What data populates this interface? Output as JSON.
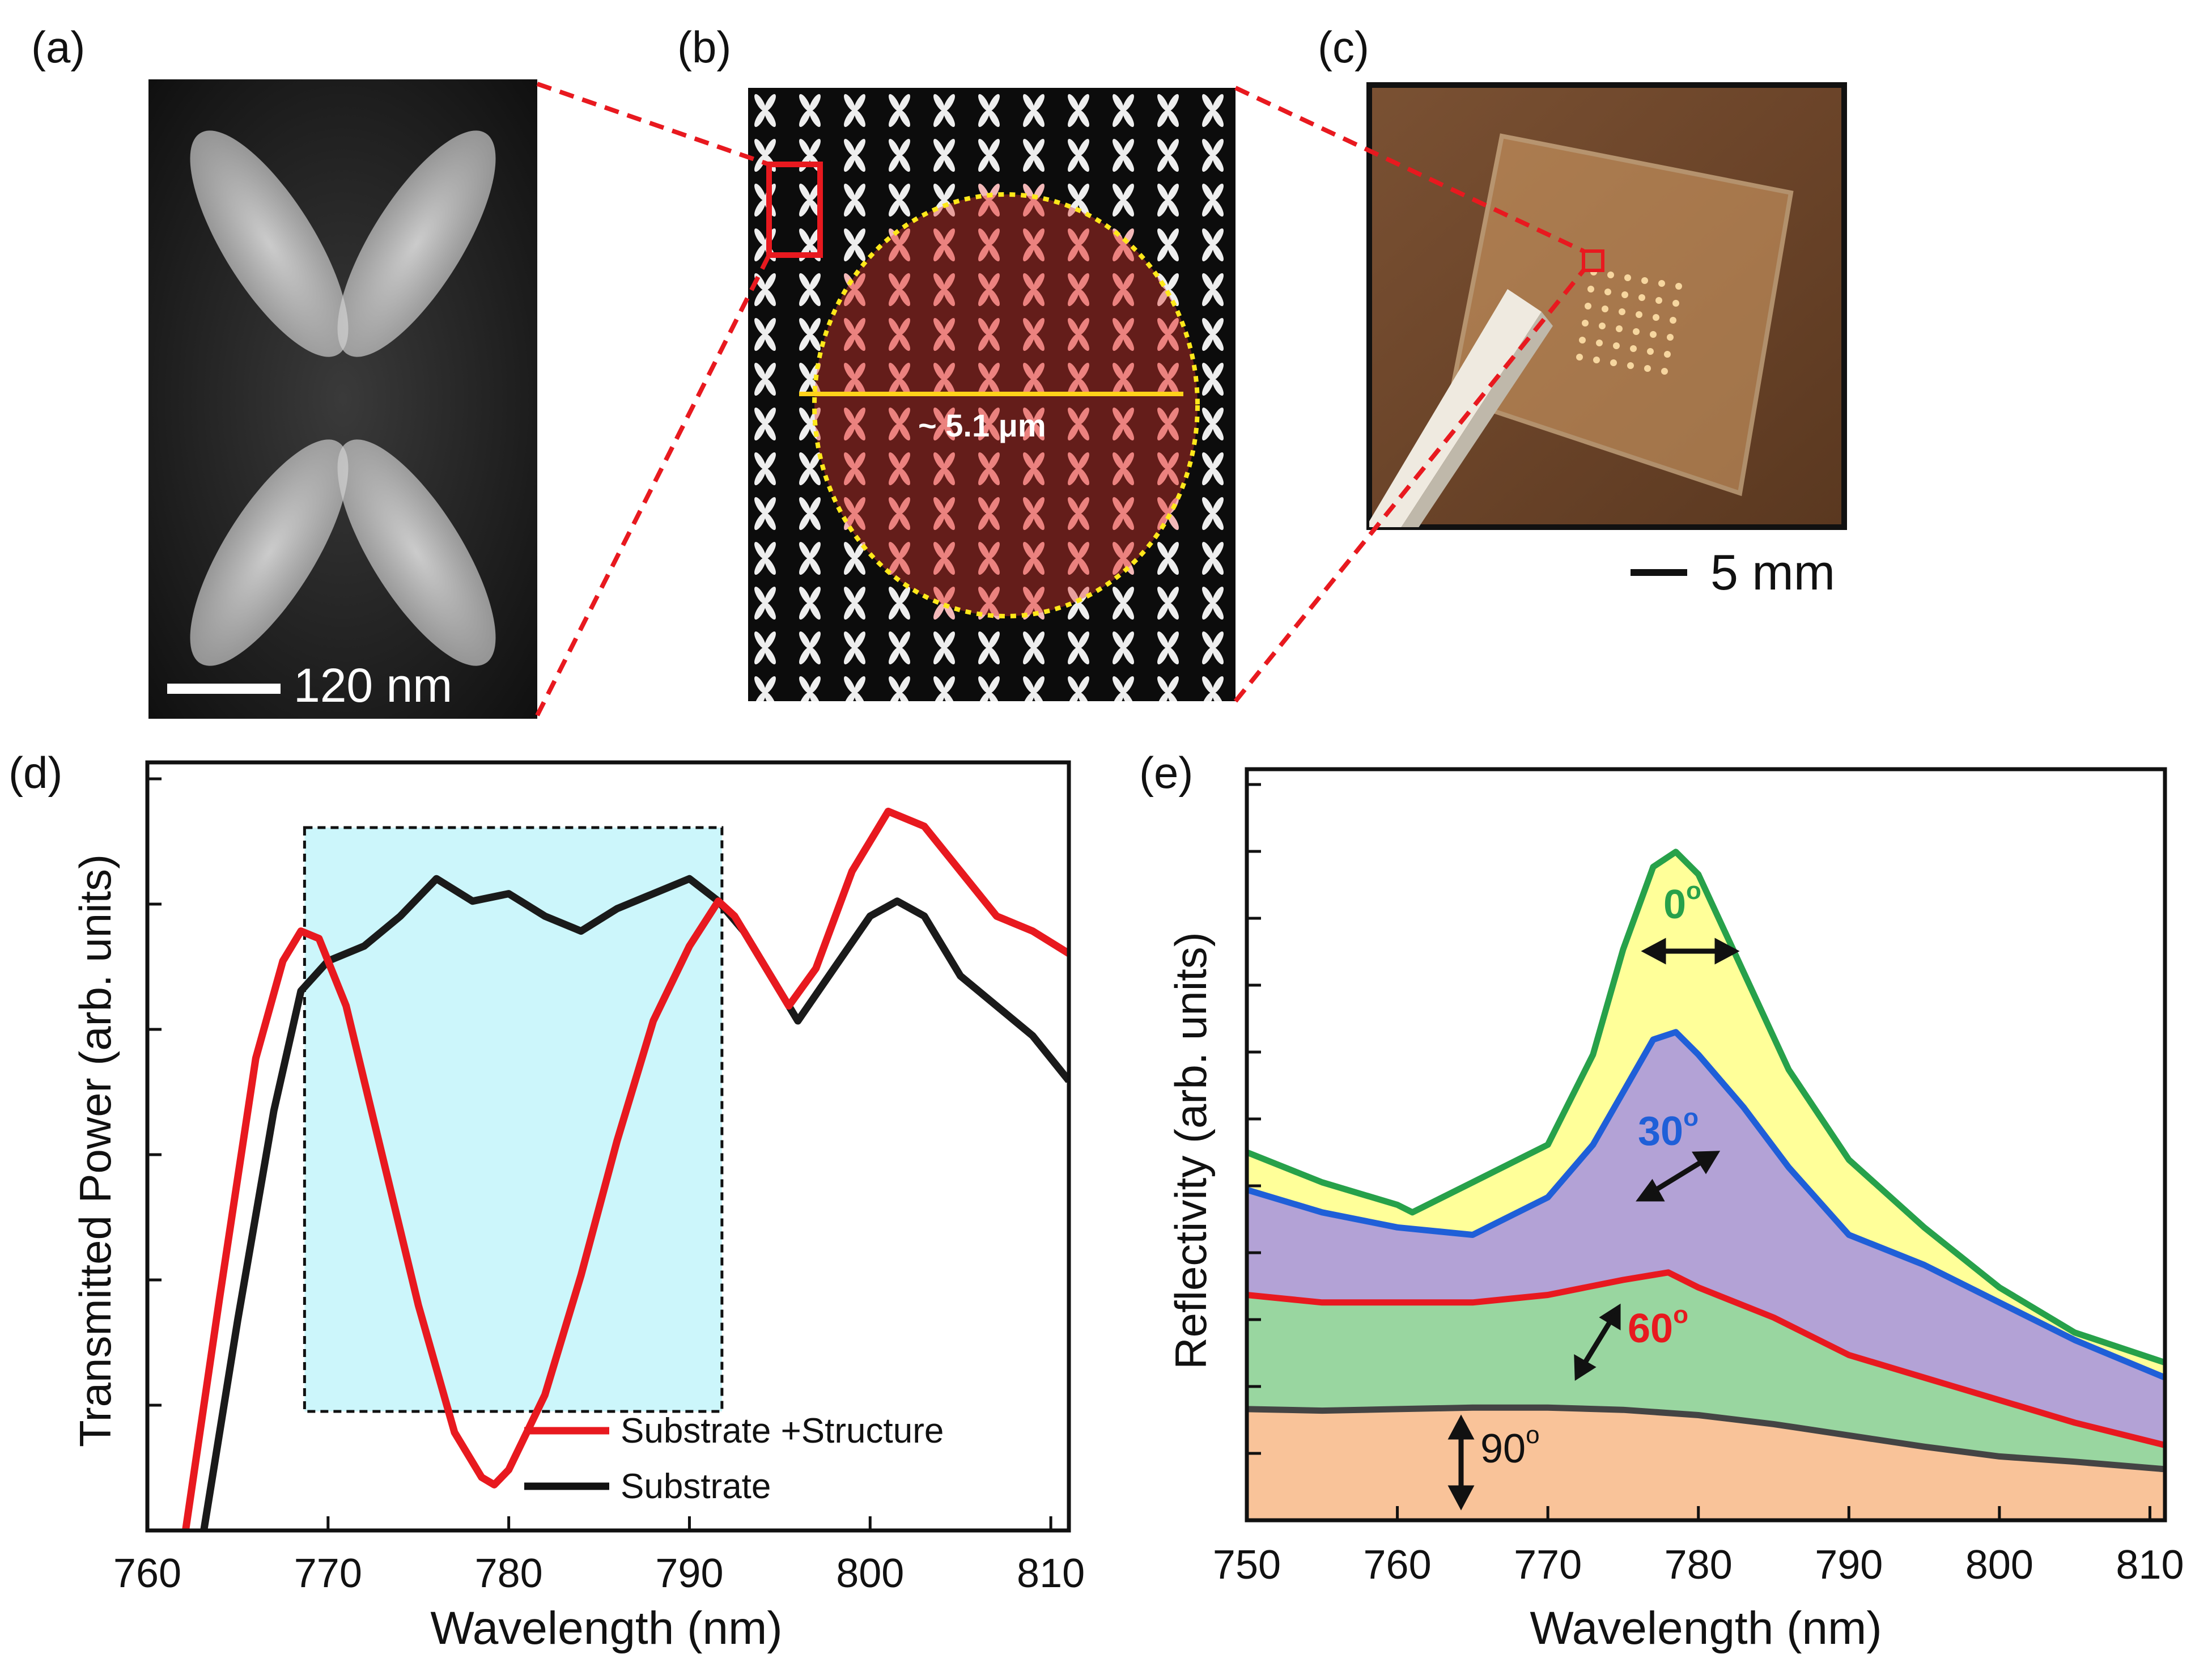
{
  "panels": {
    "a": {
      "label": "(a)",
      "scale_bar": "120 nm"
    },
    "b": {
      "label": "(b)",
      "diameter_label": "~ 5.1 μm"
    },
    "c": {
      "label": "(c)",
      "scale_bar": "5 mm"
    },
    "d": {
      "label": "(d)"
    },
    "e": {
      "label": "(e)"
    }
  },
  "colors": {
    "red": "#e8191f",
    "black": "#1a1a1a",
    "green": "#27a14a",
    "blue": "#1f5fd8",
    "cyan_fill": "#ccf6fb",
    "yellow_fill": "#ffff99",
    "purple_fill": "#b3a2d6",
    "green_fill": "#99d6a0",
    "orange_fill": "#f9c399"
  },
  "chart_data": [
    {
      "panel": "d",
      "type": "line",
      "title": "",
      "xlabel": "Wavelength (nm)",
      "ylabel": "Transmitted Power (arb. units)",
      "xlim": [
        760,
        811
      ],
      "ylim": [
        0,
        1
      ],
      "xticks": [
        760,
        770,
        780,
        790,
        800,
        810
      ],
      "xtick_labels": [
        "760",
        "770",
        "780",
        "790",
        "800",
        "810"
      ],
      "highlight_region": [
        768.7,
        791.8
      ],
      "legend": [
        "Substrate +Structure",
        "Substrate"
      ],
      "legend_position": "bottom-center",
      "series": [
        {
          "name": "Substrate +Structure",
          "color": "#e8191f",
          "x": [
            762,
            764,
            766,
            767.5,
            768.5,
            769.5,
            771,
            773,
            775,
            777,
            778.5,
            779.2,
            780,
            782,
            784,
            786,
            788,
            790,
            791.6,
            792.5,
            794,
            795.5,
            797,
            799,
            801,
            803,
            805,
            807,
            809,
            811
          ],
          "y": [
            0.0,
            0.33,
            0.65,
            0.78,
            0.82,
            0.81,
            0.72,
            0.52,
            0.32,
            0.15,
            0.09,
            0.08,
            0.1,
            0.2,
            0.36,
            0.54,
            0.7,
            0.8,
            0.86,
            0.84,
            0.78,
            0.72,
            0.77,
            0.9,
            0.98,
            0.96,
            0.9,
            0.84,
            0.82,
            0.79
          ]
        },
        {
          "name": "Substrate",
          "color": "#1a1a1a",
          "x": [
            763,
            765,
            767,
            768.5,
            770,
            772,
            774,
            776,
            778,
            780,
            782,
            784,
            786,
            788,
            790,
            791.6,
            793,
            795,
            796,
            798,
            800,
            801.5,
            803,
            805,
            807,
            809,
            811
          ],
          "y": [
            0.0,
            0.3,
            0.58,
            0.74,
            0.78,
            0.8,
            0.84,
            0.89,
            0.86,
            0.87,
            0.84,
            0.82,
            0.85,
            0.87,
            0.89,
            0.86,
            0.82,
            0.74,
            0.7,
            0.77,
            0.84,
            0.86,
            0.84,
            0.76,
            0.72,
            0.68,
            0.62
          ]
        }
      ]
    },
    {
      "panel": "e",
      "type": "area",
      "title": "",
      "xlabel": "Wavelength (nm)",
      "ylabel": "Reflectivity (arb. units)",
      "xlim": [
        750,
        811
      ],
      "ylim": [
        0,
        1
      ],
      "xticks": [
        750,
        760,
        770,
        780,
        790,
        800,
        810
      ],
      "xtick_labels": [
        "750",
        "760",
        "770",
        "780",
        "790",
        "800",
        "810"
      ],
      "series": [
        {
          "name": "0°",
          "label": "0",
          "line_color": "#27a14a",
          "fill_color": "#ffff99",
          "x": [
            750,
            755,
            760,
            761,
            765,
            770,
            773,
            775,
            777,
            778.5,
            780,
            783,
            786,
            790,
            795,
            800,
            805,
            811
          ],
          "y": [
            0.49,
            0.45,
            0.42,
            0.41,
            0.45,
            0.5,
            0.62,
            0.76,
            0.87,
            0.89,
            0.86,
            0.73,
            0.6,
            0.48,
            0.39,
            0.31,
            0.25,
            0.21
          ]
        },
        {
          "name": "30°",
          "label": "30",
          "line_color": "#1f5fd8",
          "fill_color": "#b3a2d6",
          "x": [
            750,
            755,
            760,
            765,
            770,
            773,
            775,
            777,
            778.5,
            780,
            783,
            786,
            790,
            795,
            800,
            805,
            811
          ],
          "y": [
            0.44,
            0.41,
            0.39,
            0.38,
            0.43,
            0.5,
            0.57,
            0.64,
            0.65,
            0.62,
            0.55,
            0.47,
            0.38,
            0.34,
            0.29,
            0.24,
            0.19
          ]
        },
        {
          "name": "60°",
          "label": "60",
          "line_color": "#e8191f",
          "fill_color": "#99d6a0",
          "x": [
            750,
            755,
            760,
            765,
            770,
            775,
            778,
            780,
            785,
            790,
            795,
            800,
            805,
            811
          ],
          "y": [
            0.3,
            0.29,
            0.29,
            0.29,
            0.3,
            0.32,
            0.33,
            0.31,
            0.27,
            0.22,
            0.19,
            0.16,
            0.13,
            0.1
          ]
        },
        {
          "name": "90°",
          "label": "90",
          "line_color": "#444444",
          "fill_color": "#f9c399",
          "x": [
            750,
            755,
            760,
            765,
            770,
            775,
            780,
            785,
            790,
            795,
            800,
            805,
            811
          ],
          "y": [
            0.148,
            0.146,
            0.148,
            0.15,
            0.15,
            0.147,
            0.14,
            0.128,
            0.113,
            0.098,
            0.085,
            0.078,
            0.068
          ]
        }
      ],
      "angle_unit": "o",
      "annotations": [
        "0",
        "30",
        "60",
        "90"
      ]
    }
  ]
}
